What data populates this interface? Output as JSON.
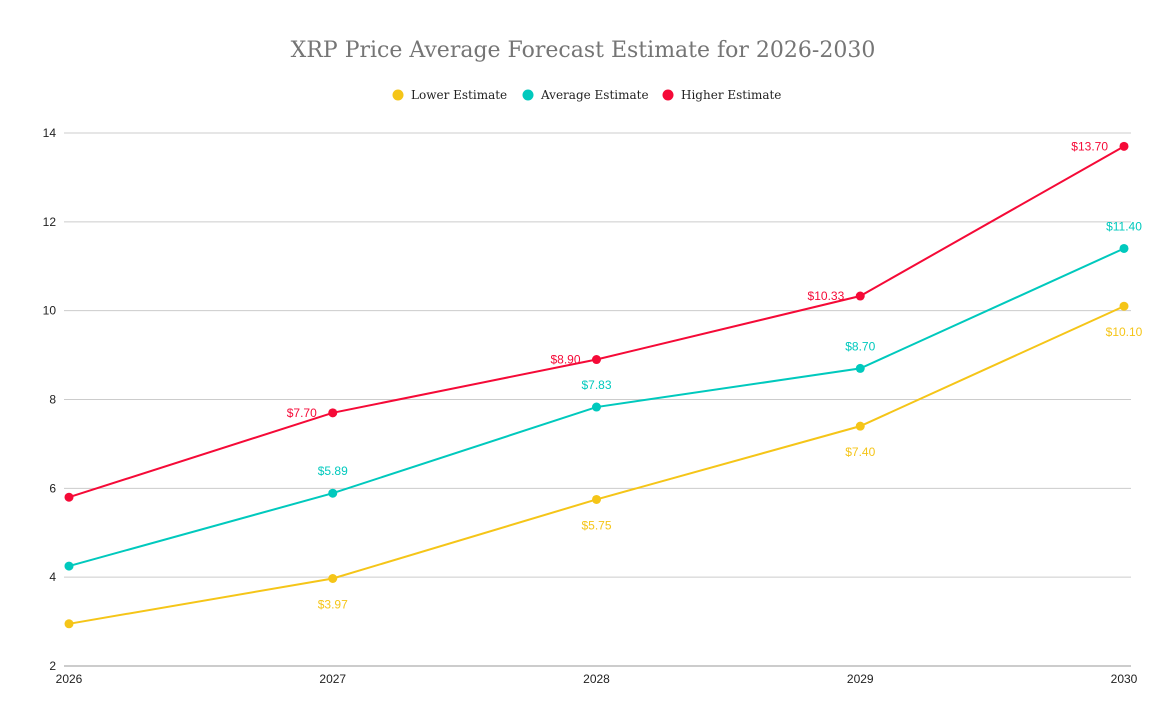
{
  "chart_data": {
    "type": "line",
    "title": "XRP Price Average Forecast Estimate for 2026-2030",
    "categories": [
      "2026",
      "2027",
      "2028",
      "2029",
      "2030"
    ],
    "ylim": [
      2,
      14
    ],
    "yticks": [
      2,
      4,
      6,
      8,
      10,
      12,
      14
    ],
    "grid": true,
    "legend_position": "top",
    "series": [
      {
        "name": "Lower Estimate",
        "color": "#f5c518",
        "values": [
          2.95,
          3.97,
          5.75,
          7.4,
          10.1
        ],
        "labels": [
          "",
          "$3.97",
          "$5.75",
          "$7.40",
          "$10.10"
        ],
        "label_pos": "below"
      },
      {
        "name": "Average Estimate",
        "color": "#00c9bd",
        "values": [
          4.25,
          5.89,
          7.83,
          8.7,
          11.4
        ],
        "labels": [
          "",
          "$5.89",
          "$7.83",
          "$8.70",
          "$11.40"
        ],
        "label_pos": "above"
      },
      {
        "name": "Higher Estimate",
        "color": "#f50a37",
        "values": [
          5.8,
          7.7,
          8.9,
          10.33,
          13.7
        ],
        "labels": [
          "",
          "$7.70",
          "$8.90",
          "$10.33",
          "$13.70"
        ],
        "label_pos": "left"
      }
    ]
  }
}
